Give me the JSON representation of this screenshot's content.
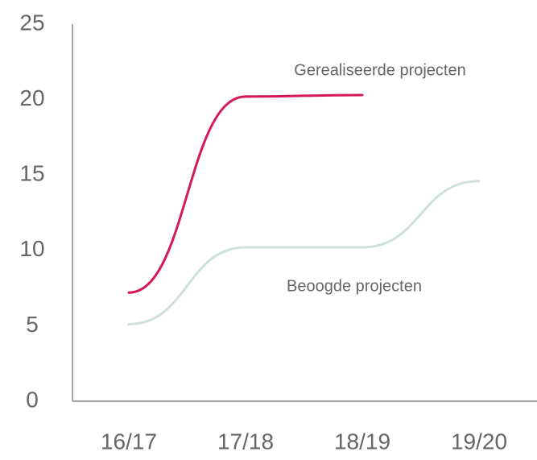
{
  "chart_data": {
    "type": "line",
    "categories": [
      "16/17",
      "17/18",
      "18/19",
      "19/20"
    ],
    "series": [
      {
        "name": "Gerealiseerde projecten",
        "color": "#d6185a",
        "values": [
          7.2,
          20.2,
          20.3,
          null
        ]
      },
      {
        "name": "Beoogde projecten",
        "color": "#cfe0d8",
        "values": [
          5.1,
          10.2,
          10.2,
          14.6
        ]
      }
    ],
    "ylim": [
      0,
      25
    ],
    "yticks": [
      0,
      5,
      10,
      15,
      20,
      25
    ],
    "grid": false
  }
}
